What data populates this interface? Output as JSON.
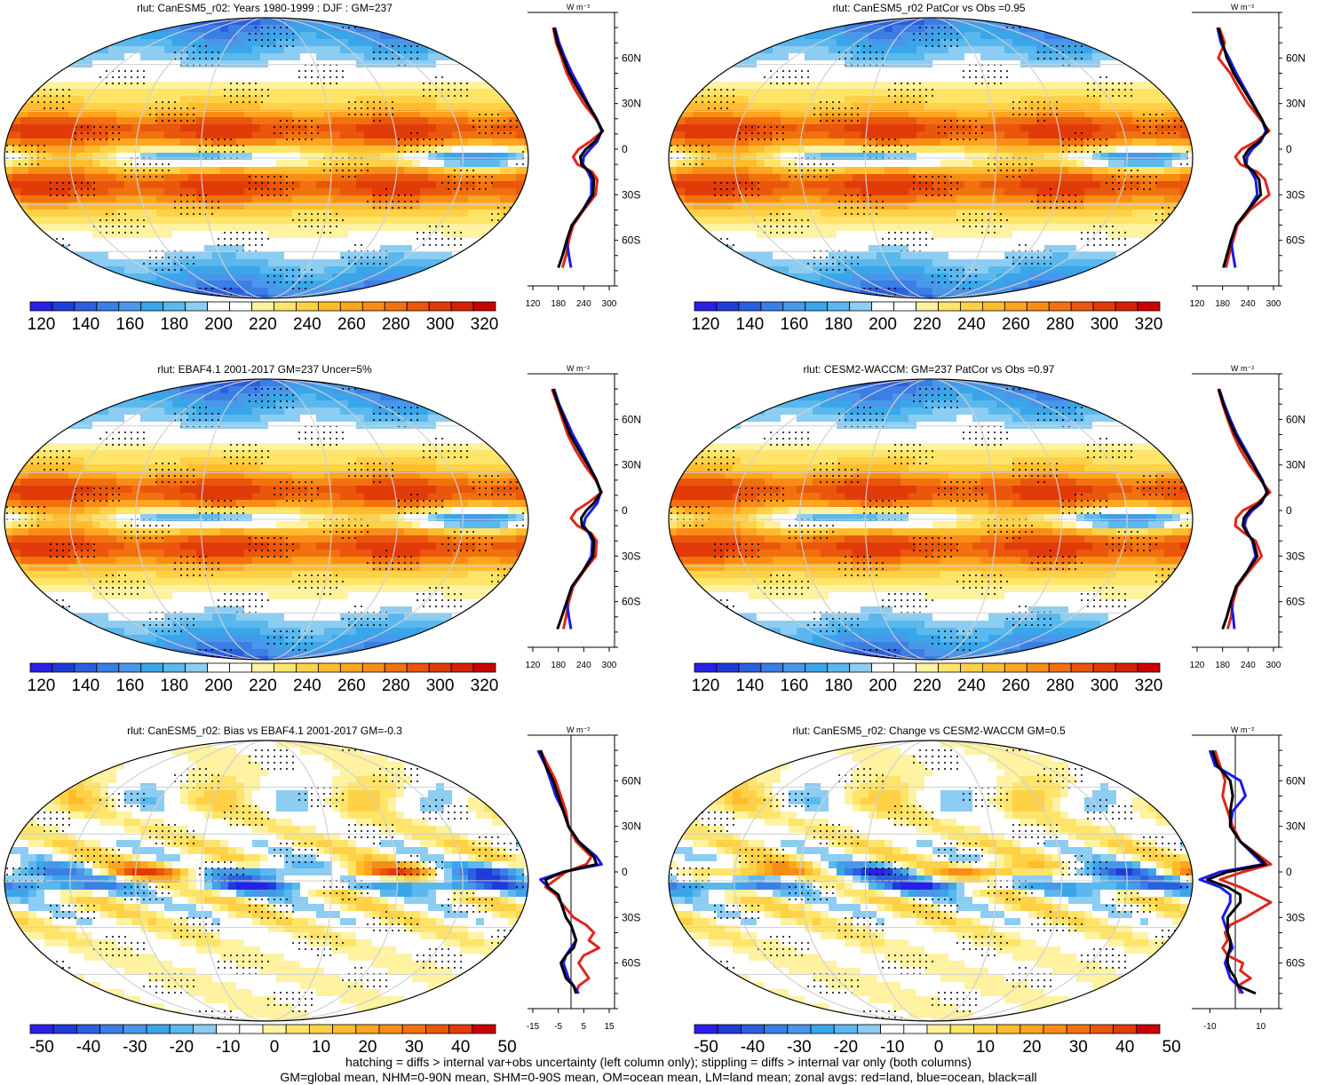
{
  "footer": {
    "line1": "hatching = diffs > internal var+obs uncertainty (left column only); stippling = diffs > internal var only (both columns)",
    "line2": "GM=global mean, NHM=0-90N mean, SHM=0-90S mean, OM=ocean mean, LM=land mean; zonal avgs: red=land, blue=ocean, black=all"
  },
  "zonal_unit": "W m⁻²",
  "lat_labels": [
    "60N",
    "30N",
    "0",
    "30S",
    "60S"
  ],
  "abs_colorbar_labels": [
    "120",
    "140",
    "160",
    "180",
    "200",
    "220",
    "240",
    "260",
    "280",
    "300",
    "320"
  ],
  "diff_colorbar_labels": [
    "-50",
    "-40",
    "-30",
    "-20",
    "-10",
    "0",
    "10",
    "20",
    "30",
    "40",
    "50"
  ],
  "colors": {
    "abs_scale": [
      "#2a1fe6",
      "#1f3bd9",
      "#2b5fe0",
      "#3a7ee6",
      "#4a97ea",
      "#3aa6ea",
      "#5ab8ee",
      "#8dcdf2",
      "#ffffff",
      "#ffffff",
      "#fff2a0",
      "#ffe46a",
      "#ffd147",
      "#ffbd2e",
      "#ffa51f",
      "#f98c17",
      "#f2710f",
      "#ea560c",
      "#e23b0a",
      "#d91f08",
      "#cc0000"
    ],
    "diff_scale": [
      "#2a1fe6",
      "#1f3bd9",
      "#2b5fe0",
      "#3a7ee6",
      "#4a97ea",
      "#3aa6ea",
      "#5ab8ee",
      "#8dcdf2",
      "#ffffff",
      "#ffffff",
      "#fff2a0",
      "#ffe46a",
      "#ffd147",
      "#ffbd2e",
      "#ffa51f",
      "#f98c17",
      "#f2710f",
      "#ea560c",
      "#e23b0a",
      "#cc0000"
    ],
    "land": "#e0261c",
    "ocean": "#1a1ae6",
    "all": "#000000"
  },
  "chart_data": [
    {
      "type": "heatmap",
      "title": "rlut: CanESM5_r02: Years 1980-1999 : DJF : GM=237",
      "colorbar": "abs",
      "zonal": {
        "type": "line",
        "xlim": [
          120,
          300
        ],
        "xticks": [
          "120",
          "180",
          "240",
          "300"
        ],
        "lat": [
          80,
          70,
          60,
          50,
          40,
          30,
          20,
          12,
          5,
          0,
          -5,
          -10,
          -15,
          -20,
          -30,
          -40,
          -50,
          -60,
          -70,
          -78
        ],
        "series": [
          {
            "name": "land",
            "values": [
              168,
              175,
              188,
              200,
              218,
              240,
              268,
              285,
              255,
              228,
              215,
              225,
              260,
              272,
              268,
              240,
              215,
              205,
              198,
              190
            ]
          },
          {
            "name": "ocean",
            "values": [
              172,
              182,
              196,
              212,
              232,
              250,
              270,
              282,
              272,
              255,
              240,
              238,
              250,
              258,
              258,
              238,
              212,
              200,
              205,
              210
            ]
          },
          {
            "name": "all",
            "values": [
              170,
              178,
              192,
              206,
              226,
              248,
              270,
              284,
              266,
              245,
              232,
              235,
              255,
              264,
              262,
              238,
              212,
              200,
              190,
              180
            ]
          }
        ]
      }
    },
    {
      "type": "heatmap",
      "title": "rlut: CanESM5_r02 PatCor vs Obs =0.95",
      "colorbar": "abs",
      "zonal": {
        "type": "line",
        "xlim": [
          120,
          300
        ],
        "xticks": [
          "120",
          "180",
          "240",
          "300"
        ],
        "lat": [
          80,
          70,
          60,
          50,
          40,
          30,
          20,
          12,
          5,
          0,
          -5,
          -10,
          -15,
          -20,
          -30,
          -40,
          -50,
          -60,
          -70,
          -78
        ],
        "series": [
          {
            "name": "land",
            "values": [
              172,
              185,
              170,
              198,
              218,
              240,
              268,
              290,
              258,
              225,
              210,
              222,
              262,
              280,
              290,
              245,
              215,
              205,
              195,
              188
            ]
          },
          {
            "name": "ocean",
            "values": [
              168,
              176,
              195,
              212,
              232,
              252,
              272,
              282,
              270,
              250,
              238,
              236,
              248,
              258,
              262,
              240,
              212,
              200,
              205,
              210
            ]
          },
          {
            "name": "all",
            "values": [
              170,
              180,
              190,
              206,
              228,
              250,
              272,
              286,
              266,
              242,
              230,
              234,
              254,
              266,
              270,
              240,
              212,
              200,
              190,
              182
            ]
          }
        ]
      }
    },
    {
      "type": "heatmap",
      "title": "rlut: EBAF4.1 2001-2017 GM=237 Uncer=5%",
      "colorbar": "abs",
      "zonal": {
        "type": "line",
        "xlim": [
          120,
          300
        ],
        "xticks": [
          "120",
          "180",
          "240",
          "300"
        ],
        "lat": [
          80,
          70,
          60,
          50,
          40,
          30,
          20,
          12,
          5,
          0,
          -5,
          -10,
          -15,
          -20,
          -30,
          -40,
          -50,
          -60,
          -70,
          -78
        ],
        "series": [
          {
            "name": "land",
            "values": [
              165,
              178,
              190,
              202,
              220,
              242,
              268,
              282,
              250,
              222,
              210,
              225,
              258,
              270,
              268,
              240,
              215,
              205,
              198,
              192
            ]
          },
          {
            "name": "ocean",
            "values": [
              170,
              182,
              198,
              214,
              234,
              252,
              270,
              280,
              272,
              258,
              244,
              240,
              252,
              260,
              258,
              238,
              212,
              200,
              205,
              210
            ]
          },
          {
            "name": "all",
            "values": [
              168,
              180,
              194,
              208,
              228,
              250,
              270,
              281,
              264,
              246,
              234,
              236,
              255,
              264,
              262,
              238,
              212,
              200,
              188,
              178
            ]
          }
        ]
      }
    },
    {
      "type": "heatmap",
      "title": "rlut: CESM2-WACCM: GM=237 PatCor vs Obs =0.97",
      "colorbar": "abs",
      "zonal": {
        "type": "line",
        "xlim": [
          120,
          300
        ],
        "xticks": [
          "120",
          "180",
          "240",
          "300"
        ],
        "lat": [
          80,
          70,
          60,
          50,
          40,
          30,
          20,
          12,
          5,
          0,
          -5,
          -10,
          -15,
          -20,
          -30,
          -40,
          -50,
          -60,
          -70,
          -78
        ],
        "series": [
          {
            "name": "land",
            "values": [
              170,
              180,
              192,
              205,
              222,
              244,
              270,
              292,
              262,
              228,
              212,
              210,
              232,
              258,
              272,
              242,
              215,
              205,
              200,
              192
            ]
          },
          {
            "name": "ocean",
            "values": [
              172,
              184,
              198,
              214,
              234,
              254,
              274,
              284,
              272,
              250,
              236,
              232,
              240,
              250,
              258,
              238,
              212,
              200,
              205,
              208
            ]
          },
          {
            "name": "all",
            "values": [
              171,
              182,
              195,
              210,
              230,
              252,
              272,
              286,
              268,
              244,
              230,
              228,
              238,
              252,
              262,
              238,
              212,
              200,
              190,
              180
            ]
          }
        ]
      }
    },
    {
      "type": "heatmap",
      "title": "rlut: CanESM5_r02: Bias vs EBAF4.1 2001-2017 GM=-0.3",
      "colorbar": "diff",
      "zonal": {
        "type": "line",
        "xlim": [
          -15,
          15
        ],
        "xticks": [
          "-15",
          "-5",
          "5",
          "15"
        ],
        "lat": [
          80,
          70,
          60,
          50,
          40,
          30,
          20,
          10,
          5,
          0,
          -5,
          -10,
          -15,
          -20,
          -30,
          -35,
          -40,
          -45,
          -50,
          -55,
          -60,
          -65,
          -70,
          -75,
          -80
        ],
        "series": [
          {
            "name": "land",
            "values": [
              -12,
              -9,
              -6,
              -4,
              -2,
              -1,
              2,
              8,
              6,
              -2,
              -6,
              -10,
              -6,
              -4,
              1,
              6,
              9,
              7,
              11,
              5,
              3,
              5,
              7,
              3,
              2
            ]
          },
          {
            "name": "ocean",
            "values": [
              -13,
              -10,
              -8,
              -6,
              -3,
              -1,
              3,
              10,
              12,
              -3,
              -12,
              -9,
              -5,
              -4,
              -2,
              0,
              1,
              2,
              0,
              -2,
              -3,
              -2,
              -1,
              1,
              3
            ]
          },
          {
            "name": "all",
            "values": [
              -12,
              -10,
              -7,
              -5,
              -3,
              -1,
              3,
              9,
              10,
              -3,
              -10,
              -9,
              -5,
              -4,
              -2,
              0,
              1,
              2,
              1,
              -2,
              -4,
              -3,
              -2,
              1,
              2
            ]
          }
        ]
      }
    },
    {
      "type": "heatmap",
      "title": "rlut: CanESM5_r02: Change vs CESM2-WACCM GM=0.5",
      "colorbar": "diff",
      "zonal": {
        "type": "line",
        "xlim": [
          -15,
          15
        ],
        "xticks": [
          "-10",
          "10"
        ],
        "lat": [
          80,
          70,
          60,
          50,
          40,
          30,
          20,
          10,
          5,
          0,
          -5,
          -10,
          -15,
          -20,
          -30,
          -35,
          -40,
          -45,
          -50,
          -55,
          -60,
          -65,
          -70,
          -75,
          -80
        ],
        "series": [
          {
            "name": "land",
            "values": [
              -8,
              -6,
              -4,
              -5,
              -3,
              -1,
              2,
              10,
              14,
              3,
              -6,
              2,
              8,
              14,
              4,
              -2,
              -4,
              -3,
              -5,
              -3,
              3,
              2,
              6,
              1,
              2
            ]
          },
          {
            "name": "ocean",
            "values": [
              -10,
              -8,
              2,
              4,
              -1,
              -2,
              2,
              8,
              11,
              -6,
              -14,
              -6,
              -2,
              -2,
              -5,
              -4,
              -3,
              -2,
              -1,
              -3,
              -4,
              -3,
              -2,
              1,
              3
            ]
          },
          {
            "name": "all",
            "values": [
              -9,
              -7,
              -2,
              -1,
              -2,
              -2,
              2,
              9,
              12,
              -3,
              -11,
              -3,
              2,
              2,
              -3,
              -3,
              -3,
              -2,
              -2,
              -3,
              -3,
              -2,
              0,
              1,
              8
            ]
          }
        ]
      }
    }
  ]
}
